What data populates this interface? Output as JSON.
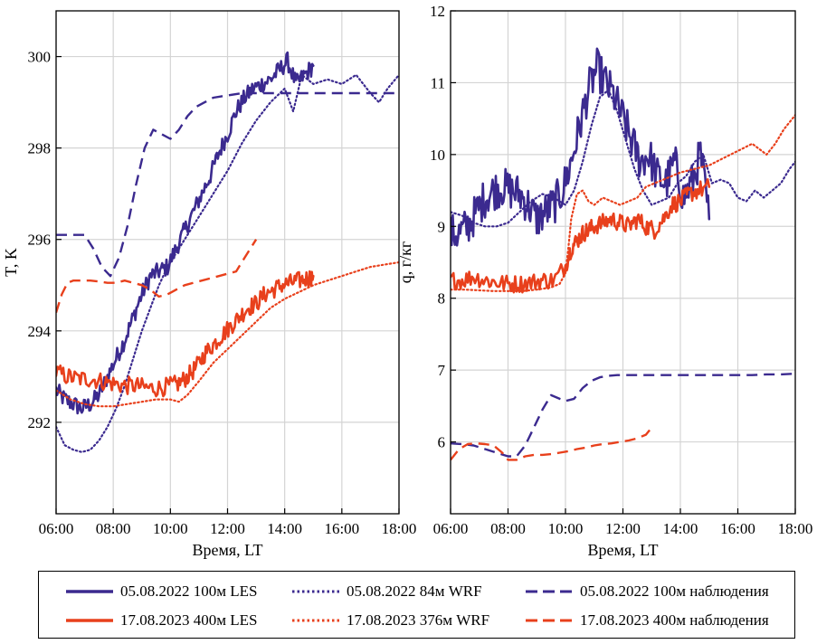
{
  "chart_data": [
    {
      "type": "line",
      "panel": "left",
      "title": "",
      "xlabel": "Время, LT",
      "ylabel": "T, K",
      "xlim": [
        6,
        18
      ],
      "ylim": [
        290,
        301
      ],
      "xticks": [
        "06:00",
        "08:00",
        "10:00",
        "12:00",
        "14:00",
        "16:00",
        "18:00"
      ],
      "yticks": [
        "292",
        "294",
        "296",
        "298",
        "300"
      ],
      "grid": true,
      "series": [
        {
          "name": "05.08.2022 100м LES",
          "color": "#3b2a8f",
          "style": "solid",
          "noisy": true,
          "x": [
            6.0,
            6.3,
            6.6,
            6.9,
            7.2,
            7.5,
            7.8,
            8.1,
            8.4,
            8.7,
            9.0,
            9.3,
            9.6,
            9.9,
            10.2,
            10.5,
            10.8,
            11.1,
            11.4,
            11.7,
            12.0,
            12.3,
            12.6,
            12.9,
            13.2,
            13.5,
            13.8,
            14.1,
            14.4,
            14.7,
            15.0
          ],
          "y": [
            292.7,
            292.5,
            292.4,
            292.3,
            292.4,
            292.6,
            293.0,
            293.4,
            293.8,
            294.3,
            294.8,
            295.2,
            295.3,
            295.4,
            295.8,
            296.2,
            296.6,
            297.0,
            297.4,
            297.9,
            298.3,
            298.8,
            299.1,
            299.3,
            299.4,
            299.5,
            299.7,
            299.9,
            299.4,
            299.6,
            299.8
          ]
        },
        {
          "name": "05.08.2022 84м WRF",
          "color": "#3b2a8f",
          "style": "dotted",
          "x": [
            6.0,
            6.3,
            6.6,
            6.9,
            7.2,
            7.5,
            7.8,
            8.1,
            8.4,
            8.7,
            9.0,
            9.3,
            9.6,
            9.9,
            10.2,
            10.5,
            10.8,
            11.1,
            11.4,
            11.7,
            12.0,
            12.5,
            13.0,
            13.5,
            14.0,
            14.3,
            14.6,
            15.0,
            15.5,
            16.0,
            16.5,
            17.0,
            17.3,
            17.6,
            18.0
          ],
          "y": [
            291.9,
            291.5,
            291.4,
            291.35,
            291.4,
            291.6,
            291.9,
            292.3,
            292.8,
            293.4,
            294.0,
            294.5,
            295.0,
            295.4,
            295.7,
            296.0,
            296.3,
            296.6,
            296.9,
            297.2,
            297.5,
            298.1,
            298.6,
            299.0,
            299.3,
            298.8,
            299.6,
            299.4,
            299.5,
            299.4,
            299.6,
            299.2,
            299.0,
            299.3,
            299.6
          ]
        },
        {
          "name": "05.08.2022 100м наблюдения",
          "color": "#3b2a8f",
          "style": "dashed",
          "x": [
            6.0,
            6.5,
            7.0,
            7.3,
            7.6,
            7.9,
            8.2,
            8.5,
            8.8,
            9.1,
            9.4,
            9.7,
            10.0,
            10.3,
            10.6,
            10.9,
            11.2,
            11.5,
            12.0,
            12.5,
            13.0,
            13.5,
            14.0,
            14.5,
            15.0,
            15.5,
            16.0,
            16.5,
            17.0,
            17.5,
            18.0
          ],
          "y": [
            296.1,
            296.1,
            296.1,
            295.8,
            295.4,
            295.2,
            295.6,
            296.3,
            297.2,
            298.0,
            298.4,
            298.3,
            298.2,
            298.4,
            298.7,
            298.9,
            299.0,
            299.1,
            299.15,
            299.2,
            299.2,
            299.2,
            299.2,
            299.2,
            299.2,
            299.2,
            299.2,
            299.2,
            299.2,
            299.2,
            299.2
          ]
        },
        {
          "name": "17.08.2023 400м LES",
          "color": "#e8401c",
          "style": "solid",
          "noisy": true,
          "x": [
            6.0,
            6.4,
            6.8,
            7.2,
            7.6,
            8.0,
            8.4,
            8.8,
            9.2,
            9.6,
            10.0,
            10.3,
            10.6,
            10.9,
            11.2,
            11.5,
            11.8,
            12.1,
            12.4,
            12.7,
            13.0,
            13.3,
            13.6,
            13.9,
            14.2,
            14.5,
            14.8,
            15.0
          ],
          "y": [
            293.1,
            293.0,
            292.95,
            292.95,
            292.9,
            292.85,
            292.8,
            292.8,
            292.75,
            292.75,
            292.8,
            292.85,
            293.0,
            293.2,
            293.5,
            293.7,
            293.9,
            294.1,
            294.3,
            294.5,
            294.6,
            294.8,
            294.9,
            295.0,
            295.05,
            295.1,
            295.15,
            295.2
          ]
        },
        {
          "name": "17.08.2023 376м WRF",
          "color": "#e8401c",
          "style": "dotted",
          "x": [
            6.0,
            6.5,
            7.0,
            7.5,
            8.0,
            8.5,
            9.0,
            9.5,
            10.0,
            10.3,
            10.6,
            11.0,
            11.5,
            12.0,
            12.5,
            13.0,
            13.5,
            14.0,
            14.5,
            15.0,
            15.5,
            16.0,
            16.5,
            17.0,
            17.5,
            18.0
          ],
          "y": [
            292.7,
            292.5,
            292.4,
            292.35,
            292.35,
            292.4,
            292.45,
            292.5,
            292.5,
            292.45,
            292.6,
            292.9,
            293.3,
            293.6,
            293.9,
            294.2,
            294.5,
            294.7,
            294.85,
            295.0,
            295.1,
            295.2,
            295.3,
            295.4,
            295.45,
            295.5
          ]
        },
        {
          "name": "17.08.2023 400м наблюдения",
          "color": "#e8401c",
          "style": "dashed",
          "x": [
            6.0,
            6.2,
            6.4,
            6.6,
            6.9,
            7.2,
            7.5,
            7.8,
            8.1,
            8.4,
            8.7,
            9.0,
            9.3,
            9.6,
            9.9,
            10.2,
            10.5,
            10.8,
            11.1,
            11.4,
            11.7,
            12.0,
            12.3,
            12.6,
            12.9,
            13.0
          ],
          "y": [
            294.4,
            294.8,
            295.05,
            295.1,
            295.1,
            295.1,
            295.08,
            295.05,
            295.05,
            295.1,
            295.05,
            295.0,
            294.9,
            294.75,
            294.8,
            294.9,
            295.0,
            295.05,
            295.1,
            295.15,
            295.2,
            295.25,
            295.3,
            295.6,
            295.9,
            296.0
          ]
        }
      ]
    },
    {
      "type": "line",
      "panel": "right",
      "title": "",
      "xlabel": "Время, LT",
      "ylabel": "q, г/кг",
      "xlim": [
        6,
        18
      ],
      "ylim": [
        5,
        12
      ],
      "xticks": [
        "06:00",
        "08:00",
        "10:00",
        "12:00",
        "14:00",
        "16:00",
        "18:00"
      ],
      "yticks": [
        "6",
        "7",
        "8",
        "9",
        "10",
        "11",
        "12"
      ],
      "grid": true,
      "series": [
        {
          "name": "05.08.2022 100м LES",
          "color": "#3b2a8f",
          "style": "solid",
          "noisy": true,
          "x": [
            6.0,
            6.3,
            6.6,
            6.9,
            7.2,
            7.5,
            7.8,
            8.1,
            8.4,
            8.7,
            9.0,
            9.3,
            9.6,
            9.9,
            10.2,
            10.5,
            10.8,
            11.1,
            11.4,
            11.7,
            12.0,
            12.3,
            12.6,
            12.9,
            13.2,
            13.5,
            13.8,
            14.1,
            14.4,
            14.7,
            15.0
          ],
          "y": [
            8.9,
            8.9,
            9.0,
            9.2,
            9.4,
            9.5,
            9.55,
            9.5,
            9.45,
            9.3,
            9.1,
            9.2,
            9.3,
            9.5,
            9.9,
            10.4,
            10.9,
            11.2,
            11.0,
            10.8,
            10.5,
            10.2,
            9.9,
            10.0,
            9.7,
            9.6,
            9.9,
            9.4,
            9.6,
            10.0,
            9.1
          ]
        },
        {
          "name": "05.08.2022 84м WRF",
          "color": "#3b2a8f",
          "style": "dotted",
          "x": [
            6.0,
            6.4,
            6.8,
            7.2,
            7.6,
            8.0,
            8.4,
            8.8,
            9.2,
            9.6,
            10.0,
            10.3,
            10.6,
            10.9,
            11.2,
            11.5,
            11.8,
            12.1,
            12.4,
            12.7,
            13.0,
            13.3,
            13.6,
            13.9,
            14.2,
            14.5,
            14.8,
            15.1,
            15.4,
            15.7,
            16.0,
            16.3,
            16.6,
            16.9,
            17.2,
            17.5,
            17.8,
            18.0
          ],
          "y": [
            9.2,
            9.15,
            9.05,
            9.0,
            9.0,
            9.05,
            9.2,
            9.35,
            9.45,
            9.4,
            9.3,
            9.5,
            9.9,
            10.4,
            10.8,
            10.9,
            10.6,
            10.2,
            9.8,
            9.5,
            9.3,
            9.35,
            9.4,
            9.6,
            9.7,
            9.9,
            10.0,
            9.6,
            9.65,
            9.6,
            9.4,
            9.35,
            9.5,
            9.4,
            9.5,
            9.6,
            9.8,
            9.9
          ]
        },
        {
          "name": "05.08.2022 100м наблюдения",
          "color": "#3b2a8f",
          "style": "dashed",
          "x": [
            6.0,
            6.4,
            6.8,
            7.2,
            7.6,
            8.0,
            8.3,
            8.6,
            8.9,
            9.2,
            9.5,
            9.8,
            10.0,
            10.3,
            10.6,
            10.9,
            11.2,
            11.5,
            11.8,
            12.0,
            12.5,
            13.0,
            13.5,
            14.0,
            14.5,
            15.0,
            15.5,
            16.0,
            16.5,
            17.0,
            17.5,
            18.0
          ],
          "y": [
            5.98,
            5.97,
            5.95,
            5.9,
            5.85,
            5.8,
            5.8,
            5.95,
            6.2,
            6.45,
            6.65,
            6.6,
            6.57,
            6.6,
            6.75,
            6.85,
            6.9,
            6.92,
            6.93,
            6.93,
            6.93,
            6.93,
            6.93,
            6.93,
            6.93,
            6.93,
            6.93,
            6.93,
            6.93,
            6.94,
            6.94,
            6.95
          ]
        },
        {
          "name": "17.08.2023 400м LES",
          "color": "#e8401c",
          "style": "solid",
          "noisy": true,
          "x": [
            6.0,
            6.4,
            6.8,
            7.2,
            7.6,
            8.0,
            8.4,
            8.8,
            9.2,
            9.6,
            10.0,
            10.2,
            10.4,
            10.6,
            10.8,
            11.0,
            11.3,
            11.6,
            11.9,
            12.2,
            12.5,
            12.8,
            13.1,
            13.4,
            13.7,
            14.0,
            14.3,
            14.6,
            15.0
          ],
          "y": [
            8.25,
            8.25,
            8.3,
            8.25,
            8.22,
            8.2,
            8.2,
            8.22,
            8.25,
            8.25,
            8.45,
            8.7,
            8.8,
            8.9,
            8.95,
            9.0,
            9.05,
            9.1,
            9.05,
            9.0,
            9.1,
            9.0,
            8.95,
            9.1,
            9.3,
            9.35,
            9.45,
            9.5,
            9.55
          ]
        },
        {
          "name": "17.08.2023 376м WRF",
          "color": "#e8401c",
          "style": "dotted",
          "x": [
            6.0,
            6.5,
            7.0,
            7.5,
            8.0,
            8.5,
            9.0,
            9.5,
            9.8,
            10.0,
            10.1,
            10.2,
            10.4,
            10.6,
            10.8,
            11.0,
            11.3,
            11.6,
            11.9,
            12.2,
            12.5,
            12.8,
            13.1,
            13.4,
            13.7,
            14.0,
            14.5,
            15.0,
            15.5,
            16.0,
            16.5,
            17.0,
            17.3,
            17.6,
            18.0
          ],
          "y": [
            8.12,
            8.12,
            8.11,
            8.1,
            8.1,
            8.1,
            8.12,
            8.15,
            8.2,
            8.35,
            8.7,
            9.1,
            9.45,
            9.5,
            9.35,
            9.3,
            9.4,
            9.35,
            9.3,
            9.35,
            9.4,
            9.55,
            9.6,
            9.65,
            9.7,
            9.75,
            9.8,
            9.85,
            9.95,
            10.05,
            10.15,
            10.0,
            10.15,
            10.35,
            10.55
          ]
        },
        {
          "name": "17.08.2023 400м наблюдения",
          "color": "#e8401c",
          "style": "dashed",
          "x": [
            6.0,
            6.3,
            6.6,
            6.9,
            7.2,
            7.5,
            7.8,
            8.0,
            8.3,
            8.6,
            8.9,
            9.2,
            9.5,
            9.8,
            10.1,
            10.4,
            10.7,
            11.0,
            11.3,
            11.6,
            11.9,
            12.2,
            12.5,
            12.8,
            13.0
          ],
          "y": [
            5.75,
            5.9,
            5.97,
            5.98,
            5.97,
            5.95,
            5.85,
            5.75,
            5.75,
            5.8,
            5.82,
            5.82,
            5.83,
            5.85,
            5.87,
            5.9,
            5.92,
            5.95,
            5.97,
            5.98,
            6.0,
            6.02,
            6.05,
            6.1,
            6.2
          ]
        }
      ]
    }
  ],
  "legend": {
    "items": [
      {
        "label": "05.08.2022 100м LES",
        "color": "#3b2a8f",
        "style": "solid"
      },
      {
        "label": "05.08.2022 84м WRF",
        "color": "#3b2a8f",
        "style": "dotted"
      },
      {
        "label": "05.08.2022 100м наблюдения",
        "color": "#3b2a8f",
        "style": "dashed"
      },
      {
        "label": "17.08.2023 400м LES",
        "color": "#e8401c",
        "style": "solid"
      },
      {
        "label": "17.08.2023 376м WRF",
        "color": "#e8401c",
        "style": "dotted"
      },
      {
        "label": "17.08.2023 400м наблюдения",
        "color": "#e8401c",
        "style": "dashed"
      }
    ]
  }
}
